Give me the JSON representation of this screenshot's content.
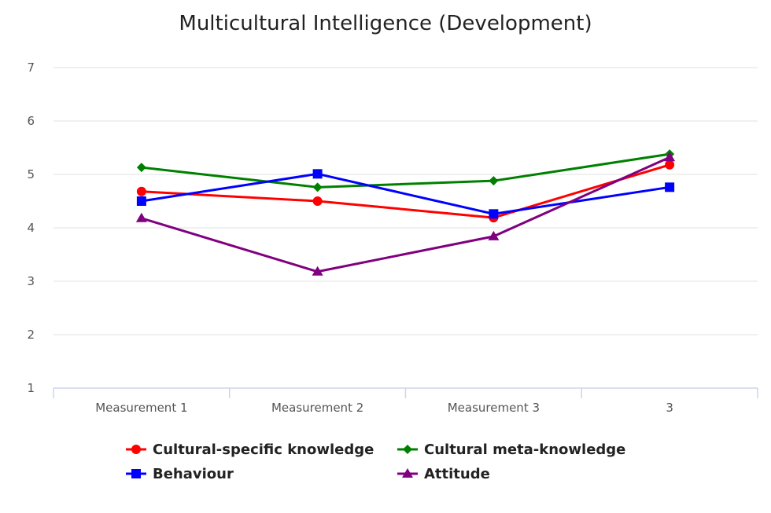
{
  "chart_data": {
    "type": "line",
    "title": "Multicultural Intelligence (Development)",
    "xlabel": "",
    "ylabel": "",
    "categories": [
      "Measurement 1",
      "Measurement 2",
      "Measurement 3",
      "3"
    ],
    "ylim": [
      1,
      7
    ],
    "yticks": [
      "1",
      "2",
      "3",
      "4",
      "5",
      "6",
      "7"
    ],
    "grid": true,
    "legend_position": "bottom",
    "series": [
      {
        "name": "Cultural-specific knowledge",
        "color": "#ff0000",
        "marker": "circle",
        "values": [
          4.68,
          4.5,
          4.19,
          5.18
        ]
      },
      {
        "name": "Cultural meta-knowledge",
        "color": "#008000",
        "marker": "diamond",
        "values": [
          5.13,
          4.76,
          4.88,
          5.38
        ]
      },
      {
        "name": "Behaviour",
        "color": "#0000ff",
        "marker": "square",
        "values": [
          4.5,
          5.01,
          4.26,
          4.76
        ]
      },
      {
        "name": "Attitude",
        "color": "#800080",
        "marker": "triangle",
        "values": [
          4.18,
          3.18,
          3.84,
          5.32
        ]
      }
    ]
  }
}
